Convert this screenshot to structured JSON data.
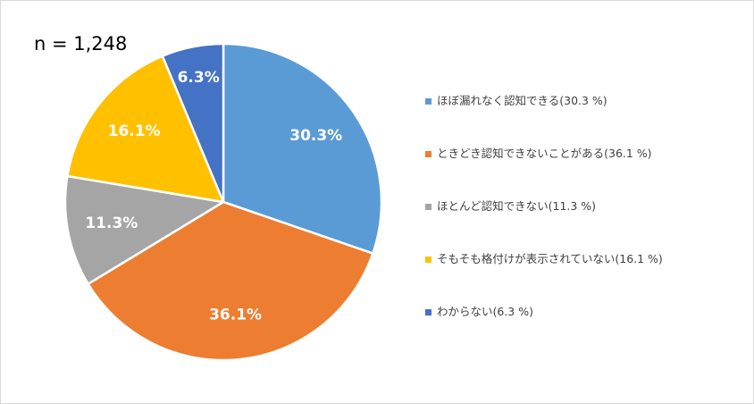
{
  "header": {
    "sample_size": "n = 1,248"
  },
  "chart_data": {
    "type": "pie",
    "title": "",
    "slices": [
      {
        "label": "ほぼ漏れなく認知できる",
        "value": 30.3,
        "data_label": "30.3%",
        "legend_label": "ほぼ漏れなく認知できる(30.3 %)",
        "color": "#5b9bd5"
      },
      {
        "label": "ときどき認知できないことがある",
        "value": 36.1,
        "data_label": "36.1%",
        "legend_label": "ときどき認知できないことがある(36.1 %)",
        "color": "#ed7d31"
      },
      {
        "label": "ほとんど認知できない",
        "value": 11.3,
        "data_label": "11.3%",
        "legend_label": "ほとんど認知できない(11.3 %)",
        "color": "#a5a5a5"
      },
      {
        "label": "そもそも格付けが表示されていない",
        "value": 16.1,
        "data_label": "16.1%",
        "legend_label": "そもそも格付けが表示されていない(16.1 %)",
        "color": "#ffc000"
      },
      {
        "label": "わからない",
        "value": 6.3,
        "data_label": "6.3%",
        "legend_label": "わからない(6.3 %)",
        "color": "#4472c4"
      }
    ],
    "legend_position": "right"
  }
}
